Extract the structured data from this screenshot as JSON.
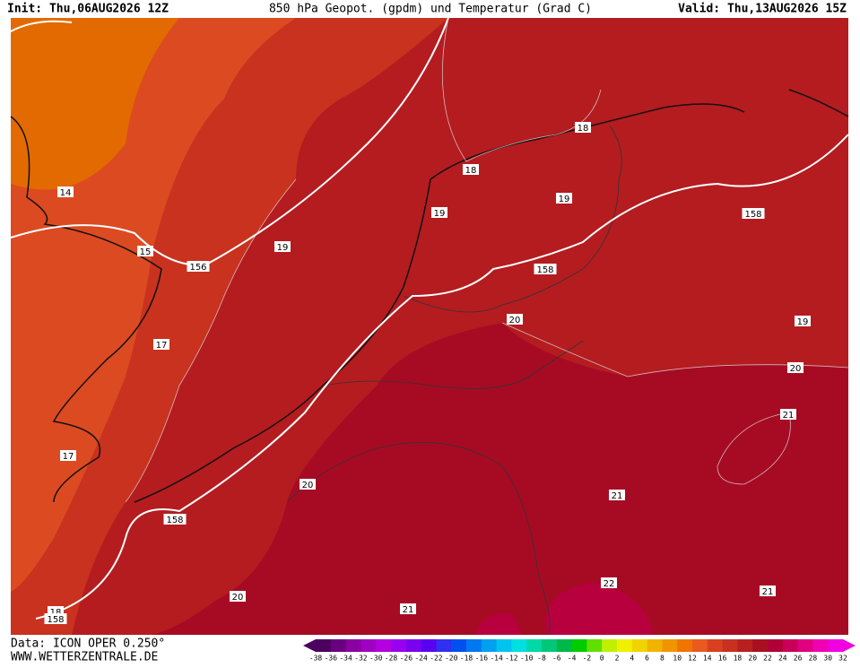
{
  "header": {
    "init": "Init: Thu,06AUG2026 12Z",
    "title": "850 hPa Geopot. (gpdm) und Temperatur (Grad C)",
    "valid": "Valid: Thu,13AUG2026 15Z"
  },
  "map": {
    "contour_labels": [
      "14",
      "15",
      "156",
      "19",
      "17",
      "17",
      "18",
      "18",
      "19",
      "19",
      "158",
      "158",
      "20",
      "19",
      "20",
      "21",
      "20",
      "158",
      "21",
      "22",
      "21",
      "20",
      "21",
      "18",
      "158"
    ]
  },
  "legend": {
    "labels": [
      "-38",
      "-36",
      "-34",
      "-32",
      "-30",
      "-28",
      "-26",
      "-24",
      "-22",
      "-20",
      "-18",
      "-16",
      "-14",
      "-12",
      "-10",
      "-8",
      "-6",
      "-4",
      "-2",
      "0",
      "2",
      "4",
      "6",
      "8",
      "10",
      "12",
      "14",
      "16",
      "18",
      "20",
      "22",
      "24",
      "26",
      "28",
      "30",
      "32"
    ],
    "colors": [
      "#4b0060",
      "#6a0080",
      "#8a00a0",
      "#a000c0",
      "#b400e0",
      "#9a00f0",
      "#7a00f0",
      "#5a00f0",
      "#3030f0",
      "#0050f0",
      "#0078f0",
      "#00a0f0",
      "#00c4f0",
      "#00e0e0",
      "#00d8a8",
      "#00c878",
      "#00b848",
      "#00cc00",
      "#60e000",
      "#c0f000",
      "#f0f000",
      "#f0d400",
      "#f0b400",
      "#f09400",
      "#f07400",
      "#e85a20",
      "#d84020",
      "#c83020",
      "#b82020",
      "#a81020",
      "#b00038",
      "#c80058",
      "#e00080",
      "#f000b0",
      "#f000e0"
    ]
  },
  "footer": {
    "data": "Data: ICON OPER 0.250°",
    "site": "WWW.WETTERZENTRALE.DE"
  }
}
